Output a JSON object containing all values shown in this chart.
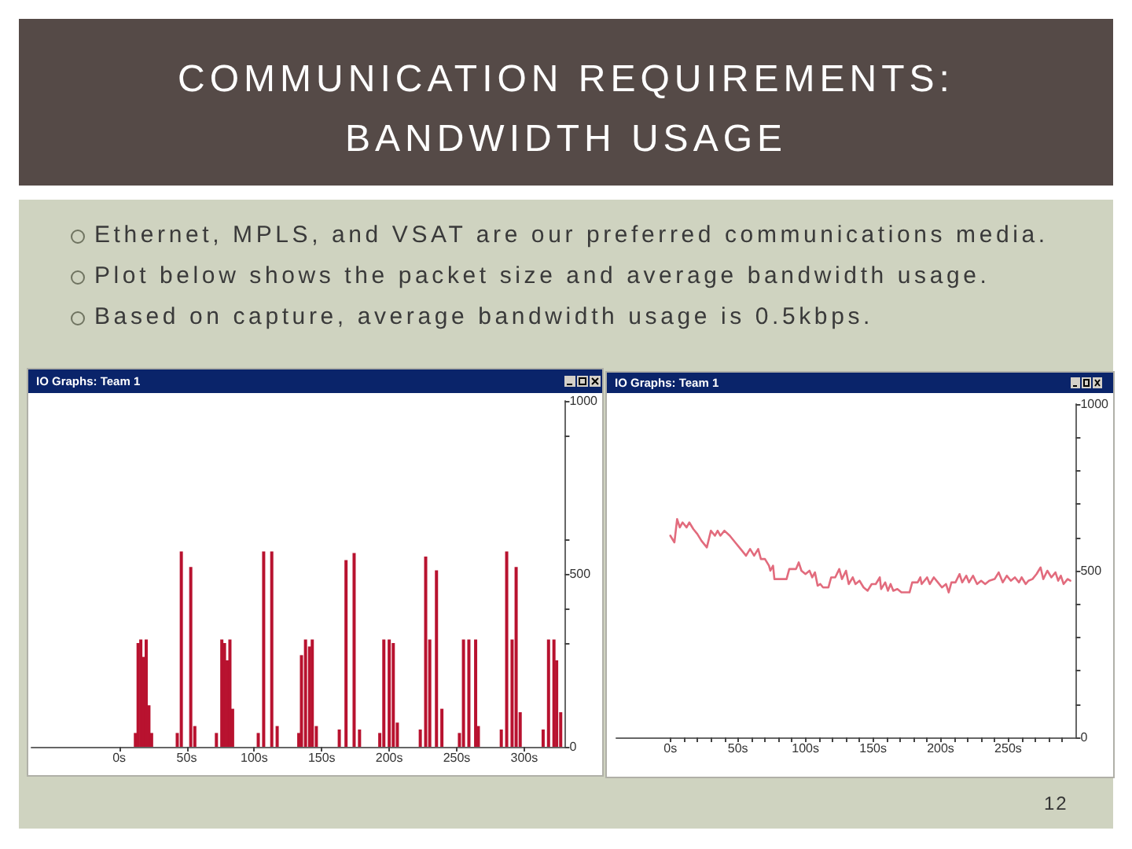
{
  "chart_data": [
    {
      "type": "other",
      "title": "COMMUNICATION REQUIREMENTS: BANDWIDTH USAGE",
      "annotations": [
        "Ethernet, MPLS, and VSAT are our preferred communications media.",
        "Plot below shows the packet size and average bandwidth usage.",
        "Based on capture, average bandwidth usage is 0.5kbps.",
        "12"
      ]
    },
    {
      "type": "bar",
      "title": "IO Graphs: Team 1",
      "color": "#b8122f",
      "x": [
        12,
        14,
        16,
        18,
        20,
        22,
        24,
        43,
        46,
        53,
        56,
        72,
        76,
        78,
        80,
        82,
        84,
        103,
        107,
        113,
        117,
        133,
        135,
        138,
        141,
        143,
        146,
        163,
        168,
        174,
        178,
        193,
        196,
        200,
        203,
        206,
        223,
        227,
        230,
        235,
        239,
        252,
        255,
        259,
        264,
        266,
        283,
        287,
        291,
        294,
        297,
        314,
        318,
        322,
        324,
        327
      ],
      "values": [
        40,
        300,
        310,
        260,
        310,
        120,
        40,
        40,
        565,
        520,
        60,
        40,
        310,
        300,
        250,
        310,
        110,
        40,
        565,
        565,
        60,
        40,
        265,
        310,
        290,
        310,
        60,
        50,
        540,
        560,
        50,
        40,
        310,
        310,
        300,
        70,
        50,
        550,
        310,
        510,
        110,
        40,
        310,
        310,
        310,
        60,
        50,
        565,
        310,
        520,
        100,
        50,
        310,
        310,
        250,
        100
      ],
      "xlim": [
        -65,
        330
      ],
      "xticks": [
        {
          "value": 0,
          "label": "0s"
        },
        {
          "value": 50,
          "label": "50s"
        },
        {
          "value": 100,
          "label": "100s"
        },
        {
          "value": 150,
          "label": "150s"
        },
        {
          "value": 200,
          "label": "200s"
        },
        {
          "value": 250,
          "label": "250s"
        },
        {
          "value": 300,
          "label": "300s"
        }
      ],
      "ylim": [
        0,
        1000
      ],
      "yticks": [
        0,
        {
          "value": 300,
          "label": null
        },
        {
          "value": 400,
          "label": null
        },
        500,
        {
          "value": 600,
          "label": null
        },
        {
          "value": 900,
          "label": null
        },
        1000
      ]
    },
    {
      "type": "line",
      "title": "IO Graphs: Team 1",
      "color": "#e26b7d",
      "x": [
        0,
        3,
        5,
        7,
        9,
        12,
        14,
        17,
        20,
        23,
        27,
        30,
        33,
        35,
        37,
        40,
        44,
        48,
        52,
        56,
        59,
        62,
        65,
        67,
        70,
        73,
        74,
        76,
        77,
        86,
        88,
        93,
        95,
        97,
        100,
        103,
        105,
        107,
        109,
        111,
        113,
        117,
        119,
        122,
        125,
        127,
        130,
        132,
        135,
        137,
        140,
        143,
        146,
        149,
        152,
        155,
        156,
        159,
        161,
        163,
        165,
        168,
        171,
        177,
        179,
        183,
        185,
        186,
        190,
        192,
        195,
        198,
        201,
        204,
        206,
        208,
        211,
        214,
        216,
        219,
        221,
        224,
        227,
        230,
        233,
        236,
        240,
        243,
        246,
        249,
        252,
        255,
        258,
        260,
        263,
        265,
        268,
        271,
        274,
        276,
        279,
        282,
        285,
        287,
        289,
        291,
        294,
        296
      ],
      "values": [
        605,
        585,
        655,
        630,
        645,
        630,
        645,
        625,
        610,
        590,
        570,
        620,
        605,
        620,
        605,
        620,
        605,
        585,
        565,
        545,
        565,
        545,
        565,
        535,
        535,
        515,
        500,
        515,
        475,
        475,
        505,
        505,
        525,
        500,
        490,
        500,
        480,
        495,
        455,
        460,
        450,
        450,
        480,
        480,
        505,
        475,
        500,
        460,
        480,
        460,
        470,
        450,
        440,
        460,
        460,
        480,
        445,
        465,
        440,
        460,
        440,
        445,
        435,
        435,
        465,
        465,
        480,
        460,
        480,
        460,
        480,
        465,
        450,
        460,
        435,
        465,
        465,
        490,
        465,
        485,
        465,
        485,
        460,
        470,
        460,
        470,
        475,
        495,
        465,
        485,
        470,
        480,
        465,
        480,
        460,
        470,
        475,
        490,
        510,
        475,
        500,
        480,
        495,
        470,
        485,
        460,
        475,
        470
      ],
      "xlim": [
        -40,
        300
      ],
      "xticks": [
        {
          "value": 0,
          "label": "0s"
        },
        {
          "value": 10,
          "label": null
        },
        {
          "value": 20,
          "label": null
        },
        {
          "value": 30,
          "label": null
        },
        {
          "value": 40,
          "label": null
        },
        {
          "value": 50,
          "label": "50s"
        },
        {
          "value": 60,
          "label": null
        },
        {
          "value": 70,
          "label": null
        },
        {
          "value": 80,
          "label": null
        },
        {
          "value": 90,
          "label": null
        },
        {
          "value": 100,
          "label": "100s"
        },
        {
          "value": 110,
          "label": null
        },
        {
          "value": 120,
          "label": null
        },
        {
          "value": 130,
          "label": null
        },
        {
          "value": 140,
          "label": null
        },
        {
          "value": 150,
          "label": "150s"
        },
        {
          "value": 160,
          "label": null
        },
        {
          "value": 170,
          "label": null
        },
        {
          "value": 180,
          "label": null
        },
        {
          "value": 190,
          "label": null
        },
        {
          "value": 200,
          "label": "200s"
        },
        {
          "value": 210,
          "label": null
        },
        {
          "value": 220,
          "label": null
        },
        {
          "value": 230,
          "label": null
        },
        {
          "value": 240,
          "label": null
        },
        {
          "value": 250,
          "label": "250s"
        },
        {
          "value": 260,
          "label": null
        },
        {
          "value": 270,
          "label": null
        },
        {
          "value": 280,
          "label": null
        },
        {
          "value": 290,
          "label": null
        }
      ],
      "ylim": [
        0,
        1000
      ],
      "yticks": [
        0,
        {
          "value": 100,
          "label": null
        },
        {
          "value": 200,
          "label": null
        },
        {
          "value": 300,
          "label": null
        },
        {
          "value": 400,
          "label": null
        },
        500,
        {
          "value": 600,
          "label": null
        },
        {
          "value": 700,
          "label": null
        },
        {
          "value": 800,
          "label": null
        },
        {
          "value": 900,
          "label": null
        },
        1000
      ]
    }
  ]
}
